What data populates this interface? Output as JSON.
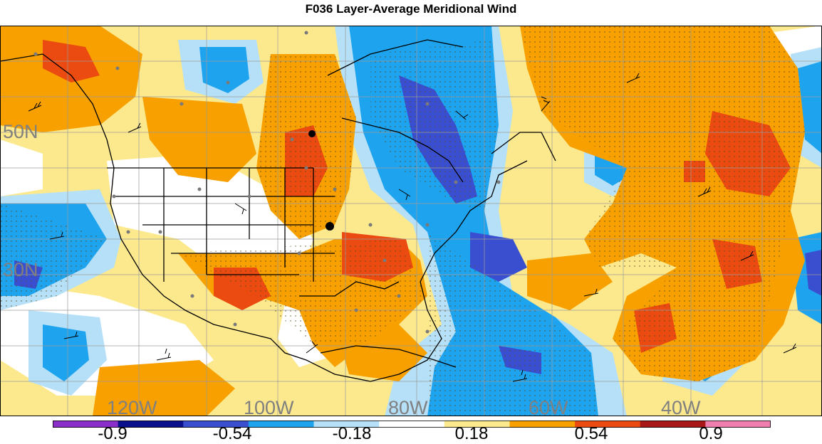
{
  "title": "F036 Layer-Average Meridional Wind",
  "lat_labels": [
    "50N",
    "30N"
  ],
  "lon_labels": [
    "120W",
    "100W",
    "80W",
    "60W",
    "40W"
  ],
  "colorbar": {
    "colors": [
      "#8a2fc9",
      "#0a0f8c",
      "#3a4fcf",
      "#1ea3ef",
      "#b5e0f8",
      "#ffffff",
      "#fce98d",
      "#f7a000",
      "#eb4a10",
      "#a81818",
      "#f07fb0"
    ],
    "tick_labels": [
      "-0.9",
      "-0.54",
      "-0.18",
      "0.18",
      "0.54",
      "0.9"
    ]
  },
  "palette": {
    "strong_neg": "#3a4fcf",
    "neg": "#1ea3ef",
    "weak_neg": "#b5e0f8",
    "weak_pos": "#fce98d",
    "pos": "#f7a000",
    "strong_pos": "#eb4a10"
  }
}
